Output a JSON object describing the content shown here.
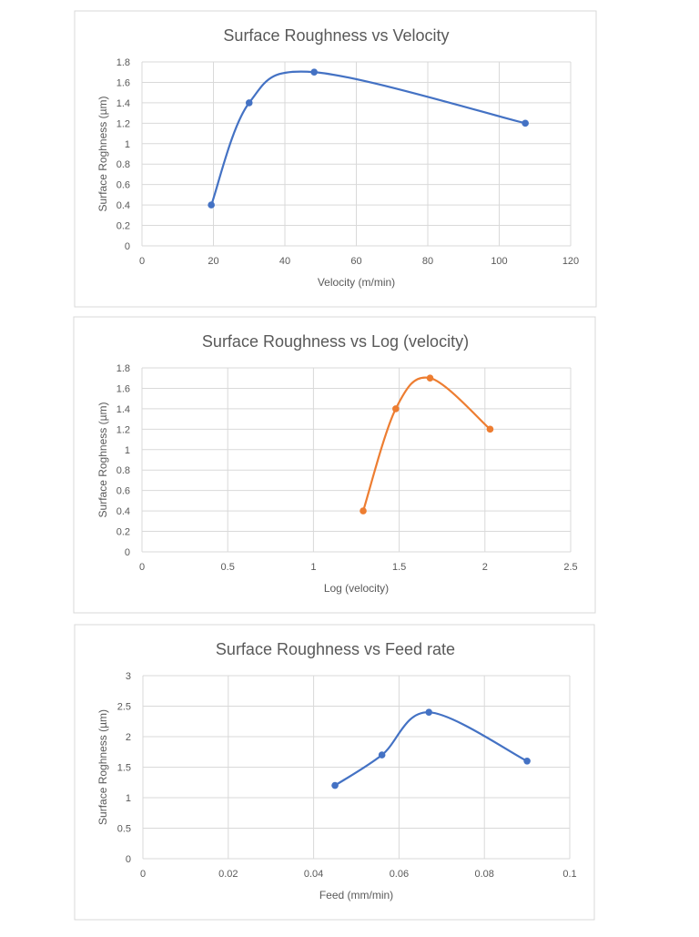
{
  "chart_data": [
    {
      "type": "scatter",
      "smooth": true,
      "title": "Surface Roughness vs Velocity",
      "x_label": "Velocity (m/min)",
      "y_label": "Surface Roghness (µm)",
      "x": [
        19.4,
        30,
        48.2,
        107.3
      ],
      "values": [
        0.4,
        1.4,
        1.7,
        1.2
      ],
      "color": "#4472c4",
      "xlim": [
        0,
        120
      ],
      "xticks": [
        0,
        20,
        40,
        60,
        80,
        100,
        120
      ],
      "ylim": [
        0,
        1.8
      ],
      "yticks": [
        0,
        0.2,
        0.4,
        0.6,
        0.8,
        1,
        1.2,
        1.4,
        1.6,
        1.8
      ],
      "grid": true
    },
    {
      "type": "scatter",
      "smooth": true,
      "title": "Surface Roughness vs Log (velocity)",
      "x_label": "Log (velocity)",
      "y_label": "Surface Roghness (µm)",
      "x": [
        1.29,
        1.48,
        1.68,
        2.03
      ],
      "values": [
        0.4,
        1.4,
        1.7,
        1.2
      ],
      "color": "#ed7d31",
      "xlim": [
        0,
        2.5
      ],
      "xticks": [
        0,
        0.5,
        1,
        1.5,
        2,
        2.5
      ],
      "ylim": [
        0,
        1.8
      ],
      "yticks": [
        0,
        0.2,
        0.4,
        0.6,
        0.8,
        1,
        1.2,
        1.4,
        1.6,
        1.8
      ],
      "grid": true
    },
    {
      "type": "scatter",
      "smooth": true,
      "title": "Surface Roughness vs Feed rate",
      "x_label": "Feed (mm/min)",
      "y_label": "Surface Roghness (µm)",
      "x": [
        0.045,
        0.056,
        0.067,
        0.09
      ],
      "values": [
        1.2,
        1.7,
        2.4,
        1.6
      ],
      "color": "#4472c4",
      "xlim": [
        0,
        0.1
      ],
      "xticks": [
        0,
        0.02,
        0.04,
        0.06,
        0.08,
        0.1
      ],
      "ylim": [
        0,
        3
      ],
      "yticks": [
        0,
        0.5,
        1,
        1.5,
        2,
        2.5,
        3
      ],
      "grid": true
    }
  ]
}
